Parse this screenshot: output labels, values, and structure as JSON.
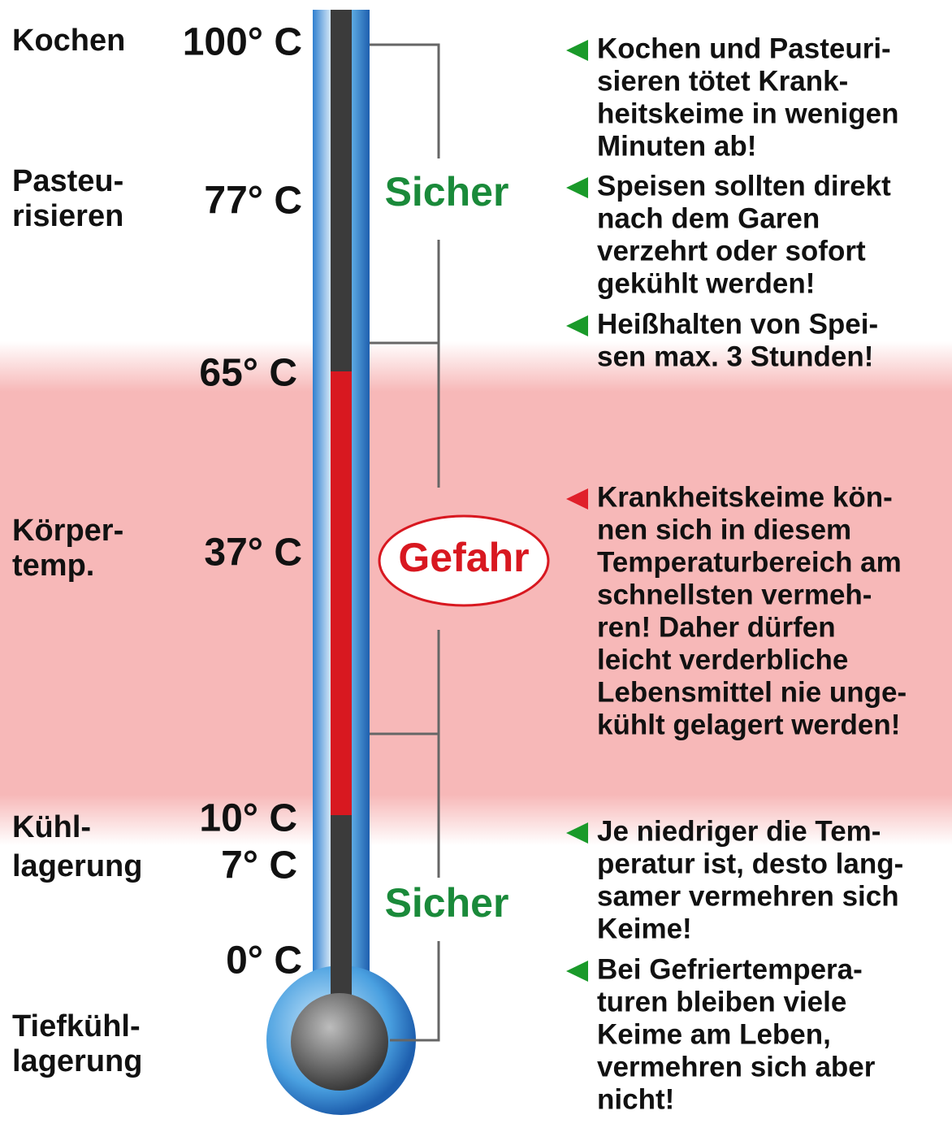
{
  "left_labels": [
    {
      "lines": [
        "Kochen"
      ]
    },
    {
      "lines": [
        "Pasteu-",
        "risieren"
      ]
    },
    {
      "lines": [
        "Körper-",
        "temp."
      ]
    },
    {
      "lines": [
        "Kühl-",
        "lagerung"
      ]
    },
    {
      "lines": [
        "Tiefkühl-",
        "lagerung"
      ]
    }
  ],
  "temperatures": [
    "100° C",
    "77° C",
    "65° C",
    "37° C",
    "10° C",
    "7° C",
    "0° C"
  ],
  "zones": {
    "safe_top": "Sicher",
    "danger": "Gefahr",
    "safe_bottom": "Sicher"
  },
  "notes": [
    {
      "lines": [
        "Kochen und Pasteuri-",
        "sieren tötet Krank-",
        "heitskeime in wenigen",
        "Minuten ab!"
      ]
    },
    {
      "lines": [
        "Speisen sollten direkt",
        "nach dem Garen",
        "verzehrt oder sofort",
        "gekühlt werden!"
      ]
    },
    {
      "lines": [
        "Heißhalten von Spei-",
        "sen max. 3 Stunden!"
      ]
    },
    {
      "lines": [
        "Krankheitskeime kön-",
        "nen sich in diesem",
        "Temperaturbereich am",
        "schnellsten vermeh-",
        "ren! Daher dürfen",
        "leicht verderbliche",
        "Lebensmittel nie unge-",
        "kühlt gelagert werden!"
      ]
    },
    {
      "lines": [
        "Je niedriger die Tem-",
        "peratur ist, desto lang-",
        "samer vermehren sich",
        "Keime!"
      ]
    },
    {
      "lines": [
        "Bei Gefriertempera-",
        "turen bleiben viele",
        "Keime am Leben,",
        "vermehren sich aber",
        "nicht!"
      ]
    }
  ]
}
